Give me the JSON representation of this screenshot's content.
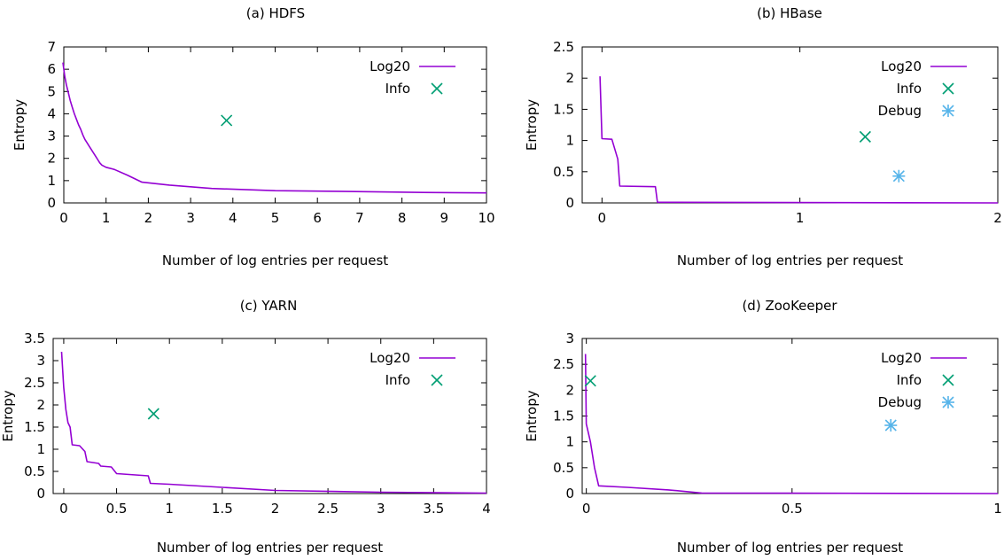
{
  "colors": {
    "log20": "#9400d3",
    "info": "#009e73",
    "debug": "#56b4e9",
    "axis": "#000000"
  },
  "chart_data": [
    {
      "type": "line",
      "title": "(a) HDFS",
      "xlabel": "Number of log entries per request",
      "ylabel": "Entropy",
      "xlim": [
        0,
        10
      ],
      "ylim": [
        0,
        7
      ],
      "xticks": [
        0,
        1,
        2,
        3,
        4,
        5,
        6,
        7,
        8,
        9,
        10
      ],
      "yticks": [
        0,
        1,
        2,
        3,
        4,
        5,
        6,
        7
      ],
      "legend_position": "top-right",
      "series": [
        {
          "name": "Log20",
          "kind": "line",
          "color": "#9400d3",
          "points": [
            [
              -0.02,
              6.3
            ],
            [
              0.02,
              5.7
            ],
            [
              0.06,
              5.3
            ],
            [
              0.1,
              5.0
            ],
            [
              0.15,
              4.6
            ],
            [
              0.2,
              4.3
            ],
            [
              0.25,
              4.0
            ],
            [
              0.3,
              3.75
            ],
            [
              0.35,
              3.5
            ],
            [
              0.4,
              3.3
            ],
            [
              0.45,
              3.05
            ],
            [
              0.5,
              2.85
            ],
            [
              0.55,
              2.7
            ],
            [
              0.6,
              2.55
            ],
            [
              0.65,
              2.4
            ],
            [
              0.7,
              2.25
            ],
            [
              0.75,
              2.1
            ],
            [
              0.8,
              1.95
            ],
            [
              0.85,
              1.8
            ],
            [
              0.9,
              1.7
            ],
            [
              1.0,
              1.6
            ],
            [
              1.2,
              1.5
            ],
            [
              1.5,
              1.25
            ],
            [
              1.85,
              0.93
            ],
            [
              2.5,
              0.8
            ],
            [
              3.5,
              0.65
            ],
            [
              5.0,
              0.55
            ],
            [
              6.5,
              0.52
            ],
            [
              8.5,
              0.47
            ],
            [
              10,
              0.45
            ]
          ]
        },
        {
          "name": "Info",
          "kind": "point",
          "marker": "x",
          "color": "#009e73",
          "points": [
            [
              3.85,
              3.7
            ]
          ]
        }
      ]
    },
    {
      "type": "line",
      "title": "(b) HBase",
      "xlabel": "Number of log entries per request",
      "ylabel": "Entropy",
      "xlim": [
        -0.1,
        2
      ],
      "ylim": [
        0,
        2.5
      ],
      "xticks": [
        0,
        1,
        2
      ],
      "yticks": [
        0,
        0.5,
        1,
        1.5,
        2,
        2.5
      ],
      "legend_position": "top-right",
      "series": [
        {
          "name": "Log20",
          "kind": "line",
          "color": "#9400d3",
          "points": [
            [
              -0.01,
              2.03
            ],
            [
              0.0,
              1.03
            ],
            [
              0.05,
              1.02
            ],
            [
              0.08,
              0.7
            ],
            [
              0.09,
              0.27
            ],
            [
              0.27,
              0.26
            ],
            [
              0.28,
              0.01
            ],
            [
              2,
              0.0
            ]
          ]
        },
        {
          "name": "Info",
          "kind": "point",
          "marker": "x",
          "color": "#009e73",
          "points": [
            [
              1.33,
              1.06
            ]
          ]
        },
        {
          "name": "Debug",
          "kind": "point",
          "marker": "star",
          "color": "#56b4e9",
          "points": [
            [
              1.5,
              0.43
            ]
          ]
        }
      ]
    },
    {
      "type": "line",
      "title": "(c) YARN",
      "xlabel": "Number of log entries per request",
      "ylabel": "Entropy",
      "xlim": [
        -0.1,
        4
      ],
      "ylim": [
        0,
        3.5
      ],
      "xticks": [
        0,
        0.5,
        1,
        1.5,
        2,
        2.5,
        3,
        3.5,
        4
      ],
      "yticks": [
        0,
        0.5,
        1,
        1.5,
        2,
        2.5,
        3,
        3.5
      ],
      "legend_position": "top-right",
      "series": [
        {
          "name": "Log20",
          "kind": "line",
          "color": "#9400d3",
          "points": [
            [
              -0.02,
              3.2
            ],
            [
              0.0,
              2.4
            ],
            [
              0.02,
              1.9
            ],
            [
              0.04,
              1.6
            ],
            [
              0.06,
              1.5
            ],
            [
              0.08,
              1.1
            ],
            [
              0.15,
              1.08
            ],
            [
              0.2,
              0.95
            ],
            [
              0.22,
              0.72
            ],
            [
              0.33,
              0.68
            ],
            [
              0.35,
              0.62
            ],
            [
              0.45,
              0.6
            ],
            [
              0.5,
              0.45
            ],
            [
              0.8,
              0.4
            ],
            [
              0.82,
              0.23
            ],
            [
              1.0,
              0.21
            ],
            [
              1.5,
              0.14
            ],
            [
              2.0,
              0.07
            ],
            [
              3.0,
              0.03
            ],
            [
              4.0,
              0.01
            ]
          ]
        },
        {
          "name": "Info",
          "kind": "point",
          "marker": "x",
          "color": "#009e73",
          "points": [
            [
              0.85,
              1.8
            ]
          ]
        }
      ]
    },
    {
      "type": "line",
      "title": "(d) ZooKeeper",
      "xlabel": "Number of log entries per request",
      "ylabel": "Entropy",
      "xlim": [
        -0.01,
        1
      ],
      "ylim": [
        0,
        3
      ],
      "xticks": [
        0,
        0.5,
        1
      ],
      "yticks": [
        0,
        0.5,
        1,
        1.5,
        2,
        2.5,
        3
      ],
      "legend_position": "top-right",
      "series": [
        {
          "name": "Log20",
          "kind": "line",
          "color": "#9400d3",
          "points": [
            [
              -0.002,
              2.7
            ],
            [
              0.0,
              1.35
            ],
            [
              0.01,
              1.0
            ],
            [
              0.02,
              0.5
            ],
            [
              0.03,
              0.15
            ],
            [
              0.1,
              0.12
            ],
            [
              0.2,
              0.07
            ],
            [
              0.28,
              0.01
            ],
            [
              1.0,
              0.0
            ]
          ]
        },
        {
          "name": "Info",
          "kind": "point",
          "marker": "x",
          "color": "#009e73",
          "points": [
            [
              0.01,
              2.18
            ]
          ]
        },
        {
          "name": "Debug",
          "kind": "point",
          "marker": "star",
          "color": "#56b4e9",
          "points": [
            [
              0.74,
              1.32
            ]
          ]
        }
      ]
    }
  ]
}
